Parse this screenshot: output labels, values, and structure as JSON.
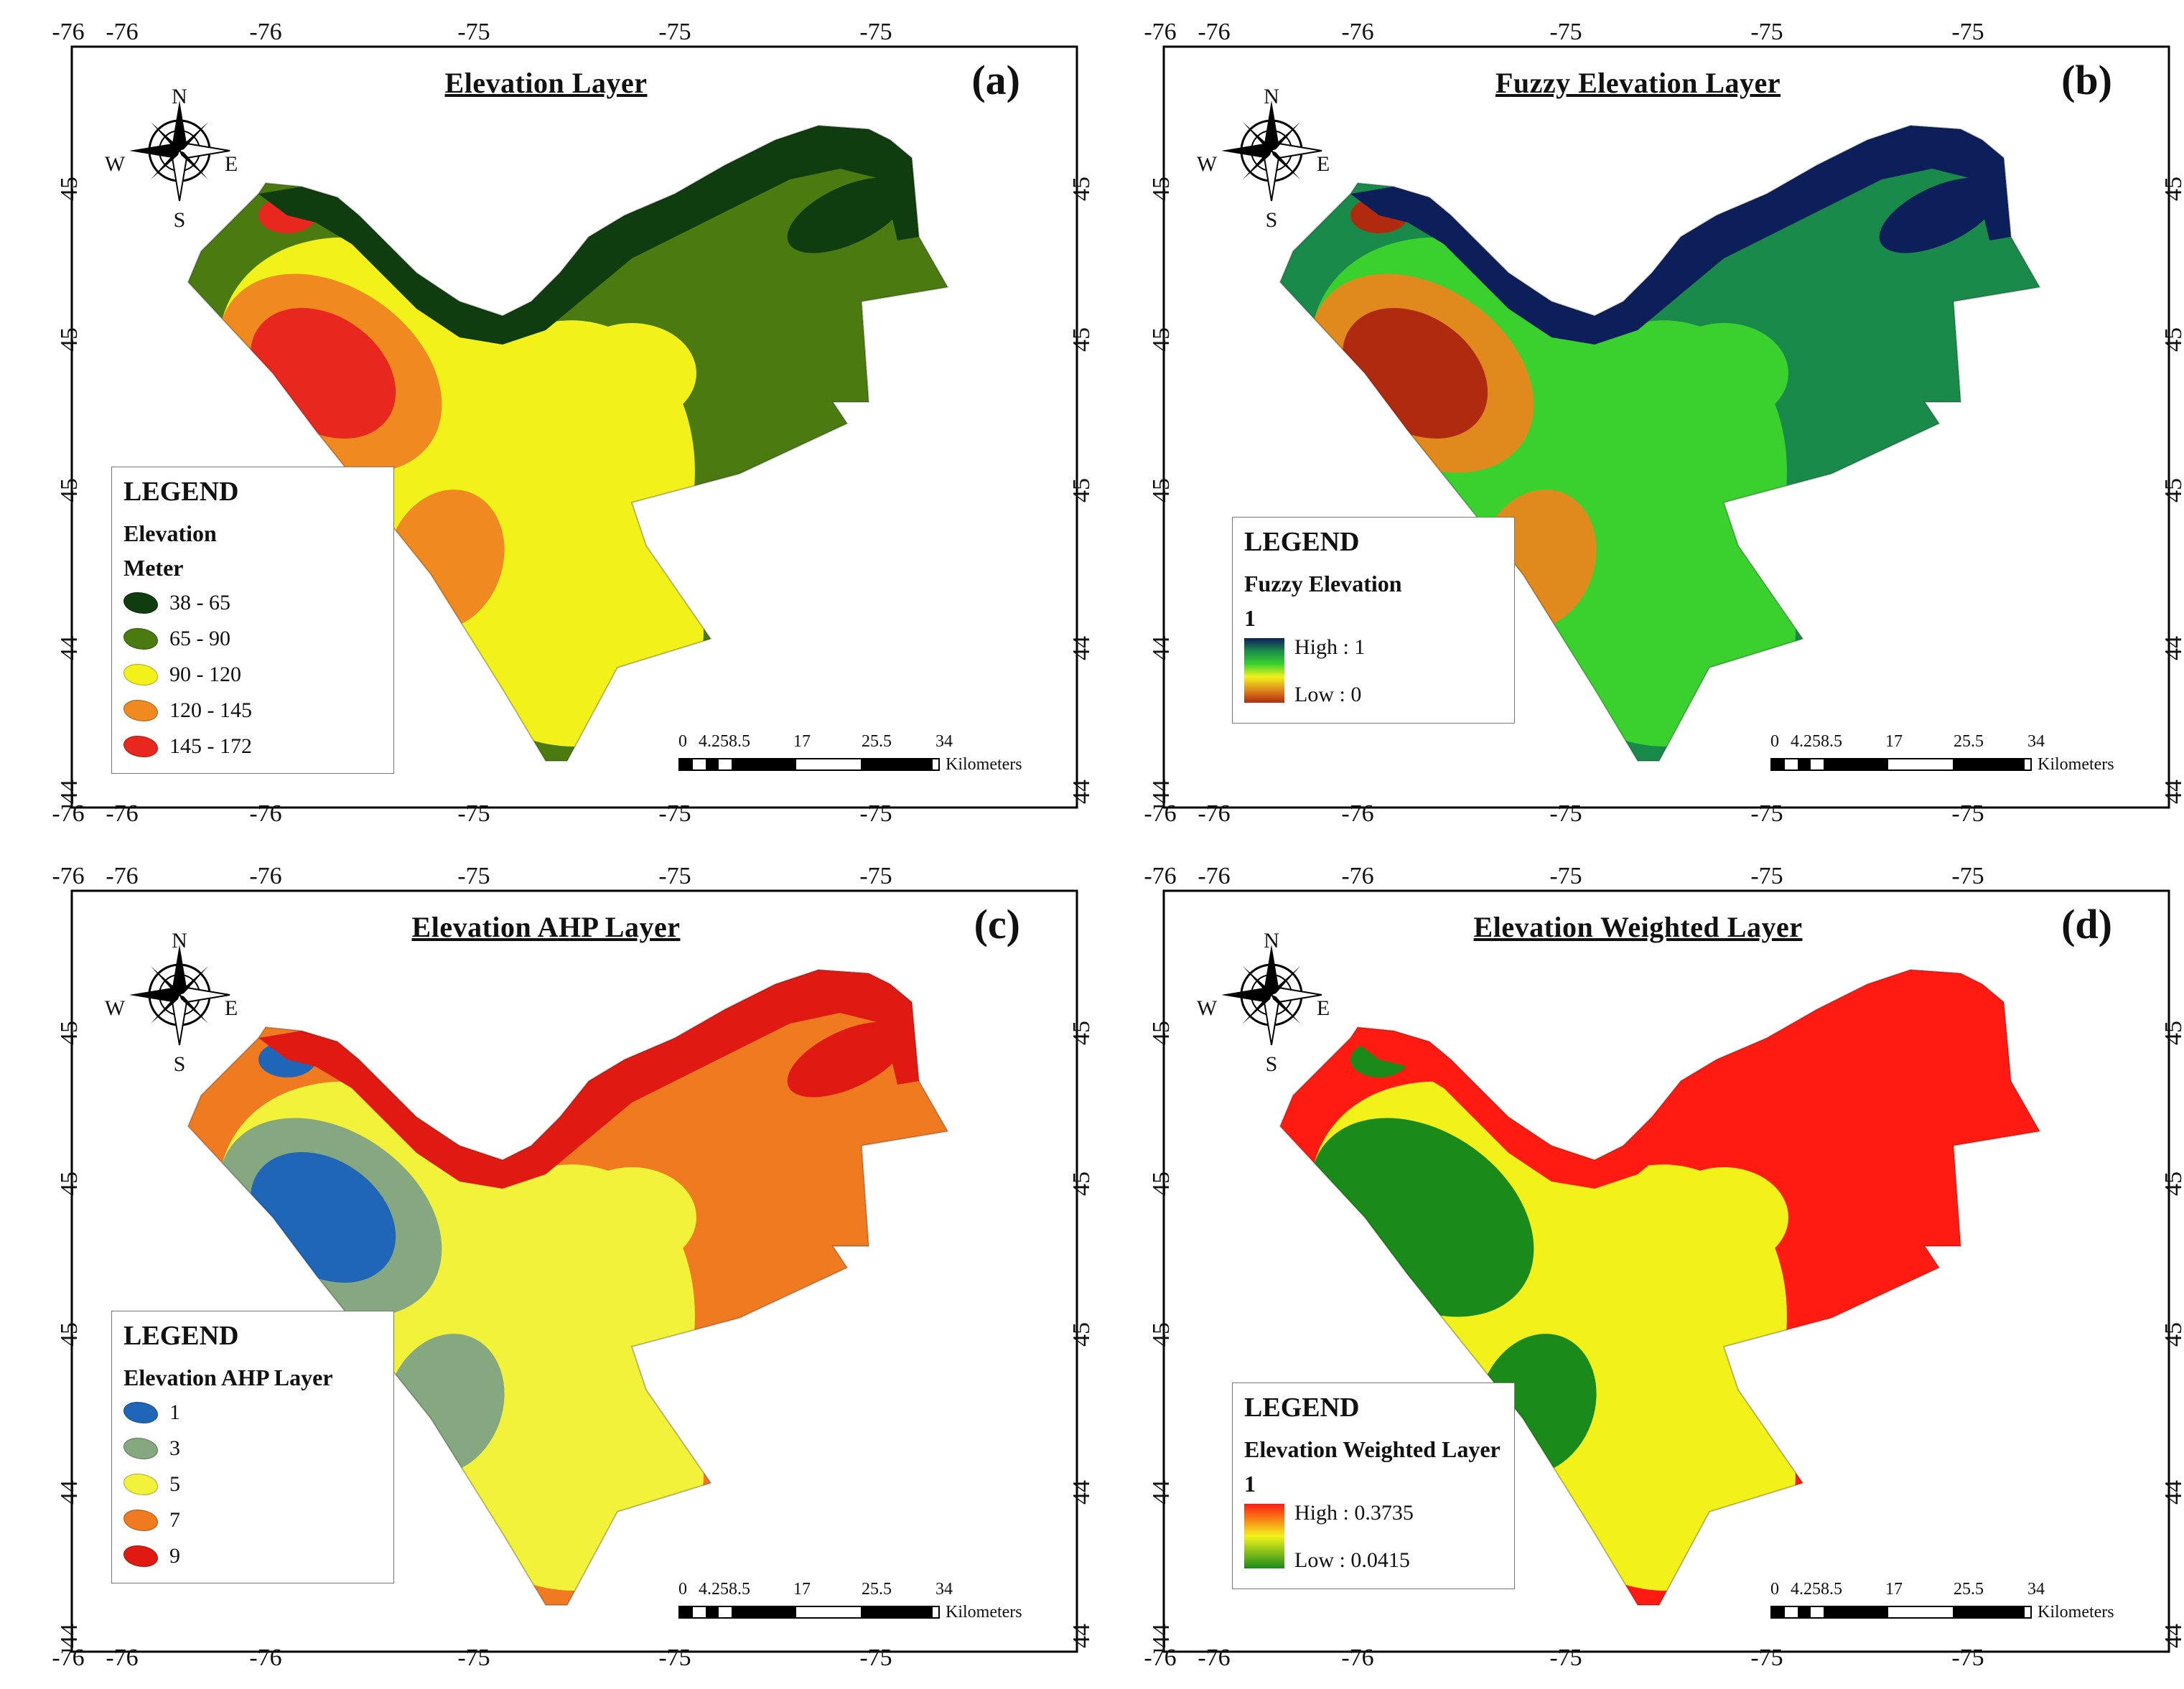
{
  "panels": [
    {
      "id": "a",
      "title": "Elevation Layer",
      "label": "(a)",
      "palette": {
        "low": "#0f3d0f",
        "mid1": "#4a7a10",
        "mid2": "#f2f21a",
        "mid3": "#f08a20",
        "high": "#e8281e"
      },
      "legend": {
        "heading": "LEGEND",
        "subtitle1": "Elevation",
        "subtitle2": "Meter",
        "items": [
          {
            "label": "38 - 65",
            "color": "#0f3d0f"
          },
          {
            "label": "65 - 90",
            "color": "#4a7a10"
          },
          {
            "label": "90 - 120",
            "color": "#f2f21a"
          },
          {
            "label": "120 - 145",
            "color": "#f08a20"
          },
          {
            "label": "145 - 172",
            "color": "#e8281e"
          }
        ]
      }
    },
    {
      "id": "b",
      "title": "Fuzzy Elevation Layer",
      "label": "(b)",
      "palette": {
        "low": "#0d1f5a",
        "mid1": "#1a8a4a",
        "mid2": "#3ad12e",
        "mid3": "#e08a1e",
        "high": "#b02a10"
      },
      "legend": {
        "heading": "LEGEND",
        "subtitle1": "Fuzzy Elevation",
        "subtitle2": "1",
        "high": "High : 1",
        "low": "Low : 0",
        "gradient": [
          "#0d1f5a",
          "#1a8a4a",
          "#3ad12e",
          "#f2f21a",
          "#e08a1e",
          "#b02a10"
        ]
      }
    },
    {
      "id": "c",
      "title": "Elevation AHP Layer",
      "label": "(c)",
      "palette": {
        "low": "#e01a12",
        "mid1": "#f07a20",
        "mid2": "#f2f23a",
        "mid3": "#86a880",
        "high": "#1f66b8"
      },
      "legend": {
        "heading": "LEGEND",
        "subtitle1": "Elevation AHP Layer",
        "items": [
          {
            "label": "1",
            "color": "#1f66b8"
          },
          {
            "label": "3",
            "color": "#86a880"
          },
          {
            "label": "5",
            "color": "#f2f23a"
          },
          {
            "label": "7",
            "color": "#f07a20"
          },
          {
            "label": "9",
            "color": "#e01a12"
          }
        ]
      }
    },
    {
      "id": "d",
      "title": "Elevation Weighted Layer",
      "label": "(d)",
      "palette": {
        "low": "#ff1a12",
        "mid1": "#ff1a12",
        "mid2": "#f2f21a",
        "mid3": "#1a8a1a",
        "high": "#1a8a1a"
      },
      "legend": {
        "heading": "LEGEND",
        "subtitle1": "Elevation Weighted Layer",
        "subtitle2": "1",
        "high": "High : 0.3735",
        "low": "Low : 0.0415",
        "gradient": [
          "#ff1a12",
          "#f2f21a",
          "#1a8a1a"
        ]
      }
    }
  ],
  "axes": {
    "x_ticks": [
      "-76",
      "-76",
      "-75",
      "-75",
      "-75"
    ],
    "x_edge": "-76",
    "y_ticks": [
      "45",
      "45",
      "45",
      "44",
      "44"
    ]
  },
  "compass": {
    "n": "N",
    "s": "S",
    "e": "E",
    "w": "W"
  },
  "scale": {
    "ticks": [
      "0",
      "4.25",
      "8.5",
      "17",
      "25.5",
      "34"
    ],
    "unit": "Kilometers"
  }
}
